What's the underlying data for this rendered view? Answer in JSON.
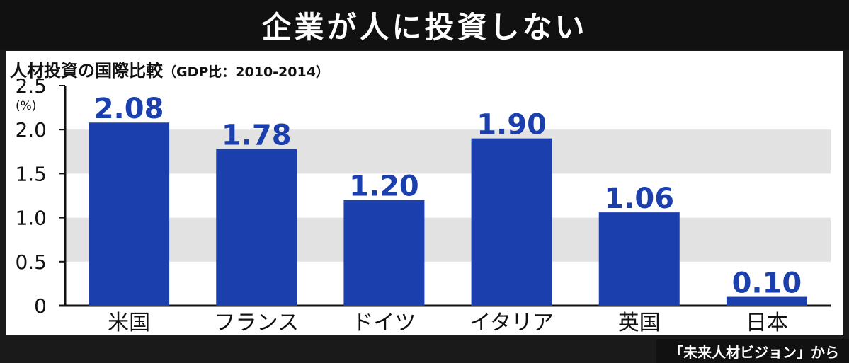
{
  "header": {
    "title": "企業が人に投資しない"
  },
  "footer": {
    "source": "「未来人材ビジョン」から"
  },
  "colors": {
    "bar": "#1c3fae",
    "label": "#1c3fae",
    "band": "#e2e2e2",
    "axis": "#111111"
  },
  "chart_data": {
    "type": "bar",
    "title": "人材投資の国際比較",
    "subtitle": "（GDP比：2010-2014）",
    "ylabel": "(%)",
    "ylim": [
      0,
      2.5
    ],
    "yticks": [
      "0",
      "0.5",
      "1.0",
      "1.5",
      "2.0",
      "2.5"
    ],
    "categories": [
      "米国",
      "フランス",
      "ドイツ",
      "イタリア",
      "英国",
      "日本"
    ],
    "values": [
      2.08,
      1.78,
      1.2,
      1.9,
      1.06,
      0.1
    ],
    "value_labels": [
      "2.08",
      "1.78",
      "1.20",
      "1.90",
      "1.06",
      "0.10"
    ],
    "grid": "alternating bands",
    "legend": "none"
  }
}
